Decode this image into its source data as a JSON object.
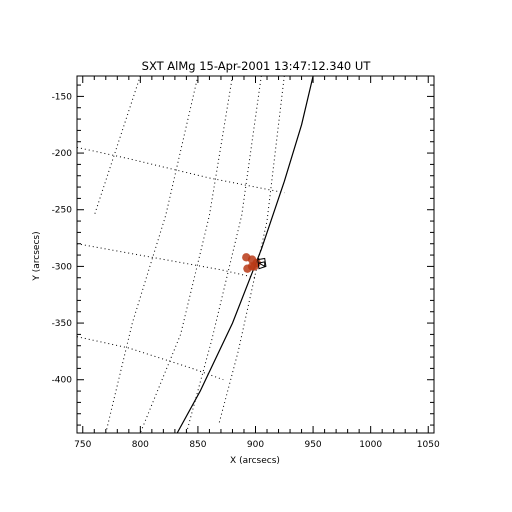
{
  "chart_data": {
    "type": "scatter",
    "title": "SXT AlMg 15-Apr-2001 13:47:12.340 UT",
    "xlabel": "X (arcsecs)",
    "ylabel": "Y (arcsecs)",
    "xlim": [
      745,
      1055
    ],
    "ylim": [
      -447,
      -132
    ],
    "x_ticks": [
      750,
      800,
      850,
      900,
      950,
      1000,
      1050
    ],
    "y_ticks": [
      -150,
      -200,
      -250,
      -300,
      -350,
      -400
    ],
    "limb": {
      "style": "solid",
      "points": [
        [
          950,
          -132
        ],
        [
          940,
          -175
        ],
        [
          925,
          -225
        ],
        [
          905,
          -285
        ],
        [
          880,
          -350
        ],
        [
          852,
          -410
        ],
        [
          832,
          -447
        ]
      ]
    },
    "grid": {
      "style": "dotted",
      "lines": [
        [
          [
            800,
            -132
          ],
          [
            760,
            -255
          ]
        ],
        [
          [
            850,
            -132
          ],
          [
            822,
            -255
          ],
          [
            793,
            -350
          ],
          [
            770,
            -447
          ]
        ],
        [
          [
            880,
            -132
          ],
          [
            860,
            -255
          ],
          [
            835,
            -360
          ],
          [
            800,
            -447
          ]
        ],
        [
          [
            905,
            -132
          ],
          [
            888,
            -255
          ],
          [
            862,
            -365
          ],
          [
            840,
            -447
          ]
        ],
        [
          [
            925,
            -132
          ],
          [
            910,
            -260
          ],
          [
            885,
            -375
          ],
          [
            868,
            -440
          ]
        ],
        [
          [
            745,
            -195
          ],
          [
            790,
            -205
          ],
          [
            860,
            -222
          ],
          [
            925,
            -235
          ]
        ],
        [
          [
            745,
            -280
          ],
          [
            810,
            -292
          ],
          [
            870,
            -303
          ],
          [
            900,
            -310
          ]
        ],
        [
          [
            745,
            -362
          ],
          [
            790,
            -372
          ],
          [
            845,
            -390
          ],
          [
            872,
            -400
          ]
        ]
      ]
    },
    "flare": {
      "color": "#b83a16",
      "points": [
        [
          892,
          -292
        ],
        [
          893,
          -302
        ],
        [
          897,
          -294
        ],
        [
          899,
          -300
        ],
        [
          901,
          -297
        ],
        [
          897,
          -300
        ]
      ],
      "contours": [
        [
          [
            902,
            -294
          ],
          [
            908,
            -293
          ],
          [
            909,
            -300
          ],
          [
            903,
            -302
          ]
        ],
        [
          [
            903,
            -297
          ],
          [
            908,
            -296
          ],
          [
            908,
            -300
          ]
        ]
      ]
    }
  }
}
